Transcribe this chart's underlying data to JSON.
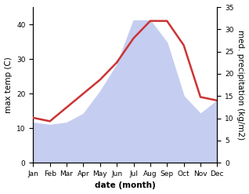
{
  "months": [
    "Jan",
    "Feb",
    "Mar",
    "Apr",
    "May",
    "Jun",
    "Jul",
    "Aug",
    "Sep",
    "Oct",
    "Nov",
    "Dec"
  ],
  "month_x": [
    1,
    2,
    3,
    4,
    5,
    6,
    7,
    8,
    9,
    10,
    11,
    12
  ],
  "temp": [
    13,
    12,
    16,
    20,
    24,
    29,
    36,
    41,
    41,
    34,
    19,
    18
  ],
  "precip": [
    9,
    8.5,
    9,
    11,
    16,
    22,
    32,
    32,
    27,
    15,
    11,
    14
  ],
  "temp_color": "#cc3333",
  "precip_fill_color": "#c5cef0",
  "temp_linewidth": 1.8,
  "ylabel_left": "max temp (C)",
  "ylabel_right": "med. precipitation (kg/m2)",
  "xlabel": "date (month)",
  "ylim_left": [
    0,
    45
  ],
  "ylim_right": [
    0,
    35
  ],
  "yticks_left": [
    0,
    10,
    20,
    30,
    40
  ],
  "yticks_right": [
    0,
    5,
    10,
    15,
    20,
    25,
    30,
    35
  ],
  "background_color": "#ffffff",
  "axis_fontsize": 7.5,
  "tick_fontsize": 6.5
}
